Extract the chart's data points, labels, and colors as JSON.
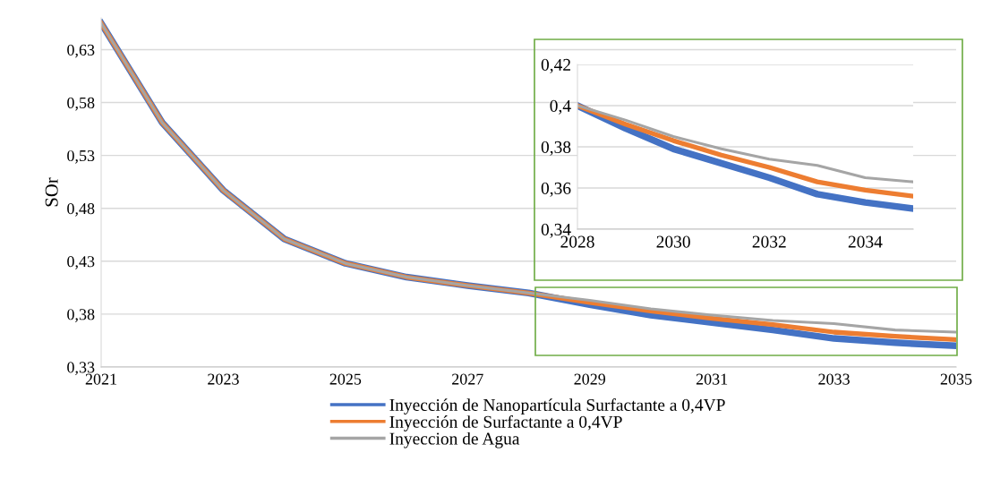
{
  "chart_data": [
    {
      "type": "line",
      "ylabel": "SOr",
      "x": [
        2021,
        2022,
        2023,
        2024,
        2025,
        2026,
        2027,
        2028,
        2029,
        2030,
        2031,
        2032,
        2033,
        2034,
        2035
      ],
      "series": [
        {
          "name": "Inyección de Nanopartícula Surfactante a 0,4VP",
          "color": "#4472c4",
          "values": [
            0.655,
            0.561,
            0.497,
            0.451,
            0.428,
            0.415,
            0.407,
            0.4,
            0.389,
            0.379,
            0.372,
            0.365,
            0.357,
            0.353,
            0.35
          ]
        },
        {
          "name": "Inyección de Surfactante a 0,4VP",
          "color": "#ed7d31",
          "values": [
            0.655,
            0.561,
            0.497,
            0.451,
            0.428,
            0.415,
            0.407,
            0.4,
            0.391,
            0.383,
            0.376,
            0.37,
            0.363,
            0.359,
            0.356
          ]
        },
        {
          "name": "Inyeccion de Agua",
          "color": "#a5a5a5",
          "values": [
            0.655,
            0.561,
            0.497,
            0.451,
            0.428,
            0.415,
            0.407,
            0.4,
            0.393,
            0.385,
            0.379,
            0.374,
            0.371,
            0.365,
            0.363
          ]
        }
      ],
      "xlim": [
        2021,
        2035
      ],
      "ylim": [
        0.33,
        0.66
      ],
      "xticks": [
        2021,
        2023,
        2025,
        2027,
        2029,
        2031,
        2033,
        2035
      ],
      "yticks": [
        {
          "value": 0.33,
          "label": "0,33"
        },
        {
          "value": 0.38,
          "label": "0,38"
        },
        {
          "value": 0.43,
          "label": "0,43"
        },
        {
          "value": 0.48,
          "label": "0,48"
        },
        {
          "value": 0.53,
          "label": "0,53"
        },
        {
          "value": 0.58,
          "label": "0,58"
        },
        {
          "value": 0.63,
          "label": "0,63"
        }
      ],
      "grid": "y",
      "legend": "bottom",
      "marker": "none",
      "line_style": "solid"
    },
    {
      "type": "line",
      "x": [
        2028,
        2029,
        2030,
        2031,
        2032,
        2033,
        2034,
        2035
      ],
      "series": [
        {
          "color": "#4472c4",
          "values": [
            0.4,
            0.389,
            0.379,
            0.372,
            0.365,
            0.357,
            0.353,
            0.35
          ]
        },
        {
          "color": "#ed7d31",
          "values": [
            0.4,
            0.391,
            0.383,
            0.376,
            0.37,
            0.363,
            0.359,
            0.356
          ]
        },
        {
          "color": "#a5a5a5",
          "values": [
            0.4,
            0.393,
            0.385,
            0.379,
            0.374,
            0.371,
            0.365,
            0.363
          ]
        }
      ],
      "xlim": [
        2028,
        2035
      ],
      "ylim": [
        0.34,
        0.42
      ],
      "xticks": [
        2028,
        2030,
        2032,
        2034
      ],
      "yticks": [
        {
          "value": 0.34,
          "label": "0,34"
        },
        {
          "value": 0.36,
          "label": "0,36"
        },
        {
          "value": 0.38,
          "label": "0,38"
        },
        {
          "value": 0.4,
          "label": "0,4"
        },
        {
          "value": 0.42,
          "label": "0,42"
        }
      ],
      "grid": "y",
      "marker": "none",
      "line_style": "solid"
    }
  ]
}
